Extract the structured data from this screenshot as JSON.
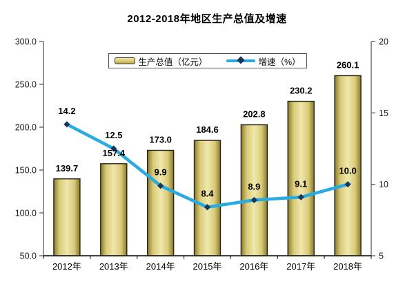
{
  "title": "2012-2018年地区生产总值及增速",
  "legend": {
    "bar_label": "生产总值（亿元）",
    "line_label": "增速（%）"
  },
  "chart_data": {
    "type": "bar+line",
    "title": "2012-2018年地区生产总值及增速",
    "categories": [
      "2012年",
      "2013年",
      "2014年",
      "2015年",
      "2016年",
      "2017年",
      "2018年"
    ],
    "series": [
      {
        "name": "生产总值（亿元）",
        "type": "bar",
        "axis": "left",
        "values": [
          139.7,
          157.4,
          173.0,
          184.6,
          202.8,
          230.2,
          260.1
        ],
        "labels": [
          "139.7",
          "157.4",
          "173.0",
          "184.6",
          "202.8",
          "230.2",
          "260.1"
        ]
      },
      {
        "name": "增速（%）",
        "type": "line",
        "axis": "right",
        "values": [
          14.2,
          12.5,
          9.9,
          8.4,
          8.9,
          9.1,
          10.0
        ],
        "labels": [
          "14.2",
          "12.5",
          "9.9",
          "8.4",
          "8.9",
          "9.1",
          "10.0"
        ]
      }
    ],
    "left_axis": {
      "min": 50,
      "max": 300,
      "step": 50,
      "tick_labels": [
        "300.0",
        "250.0",
        "200.0",
        "150.0",
        "100.0",
        "50.0"
      ]
    },
    "right_axis": {
      "min": 5,
      "max": 20,
      "step": 5,
      "tick_labels": [
        "20",
        "15",
        "10",
        "5"
      ]
    },
    "grid": false,
    "legend_position": "top-center",
    "colors": {
      "bar_edge": "#8a7a2a",
      "bar_mid": "#d9cb79",
      "bar_center": "#f0e7ab",
      "bar_border": "#26231a",
      "line": "#29abe2",
      "marker": "#17375e",
      "axis": "#4d4d4d",
      "axis_bottom": "#262626",
      "text": "#000000",
      "tick_text": "#1a1a1a"
    }
  }
}
